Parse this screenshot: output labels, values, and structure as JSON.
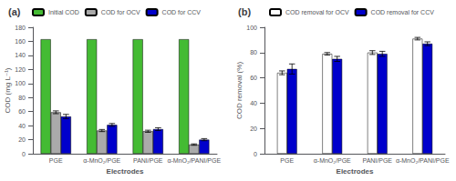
{
  "chart_data": [
    {
      "type": "bar",
      "title": "(a)",
      "categories": [
        "PGE",
        "α-MnO₂/PGE",
        "PANI/PGE",
        "α-MnO₂/PANI/PGE"
      ],
      "series": [
        {
          "name": "Initial COD",
          "color": "#44bb33",
          "values": [
            163,
            163,
            163,
            163
          ]
        },
        {
          "name": "COD for OCV",
          "color": "#aaaaaa",
          "values": [
            59,
            33,
            32,
            13
          ],
          "errors": [
            2,
            1.5,
            1.5,
            1
          ]
        },
        {
          "name": "COD for CCV",
          "color": "#0000cc",
          "values": [
            53,
            41,
            35,
            20
          ],
          "errors": [
            3,
            2,
            2,
            1.5
          ]
        }
      ],
      "xlabel": "Electrodes",
      "ylabel": "COD (mg L⁻¹)",
      "ylim": [
        0,
        180
      ],
      "yticks": [
        0,
        20,
        40,
        60,
        80,
        100,
        120,
        140,
        160,
        180
      ],
      "grid": false,
      "legend": "upper left"
    },
    {
      "type": "bar",
      "title": "(b)",
      "categories": [
        "PGE",
        "α-MnO₂/PGE",
        "PANI/PGE",
        "α-MnO₂/PANI/PGE"
      ],
      "series": [
        {
          "name": "COD removal for OCV",
          "color": "#ffffff",
          "values": [
            64,
            79,
            80,
            91
          ],
          "errors": [
            1.5,
            1,
            1.5,
            1
          ]
        },
        {
          "name": "COD removal for CCV",
          "color": "#0000cc",
          "values": [
            67,
            75,
            79,
            87
          ],
          "errors": [
            4,
            2,
            2,
            1.5
          ]
        }
      ],
      "xlabel": "Electrodes",
      "ylabel": "COD removal (%)",
      "ylim": [
        0,
        100
      ],
      "yticks": [
        0,
        20,
        40,
        60,
        80,
        100
      ],
      "grid": false,
      "legend": "upper left"
    }
  ]
}
